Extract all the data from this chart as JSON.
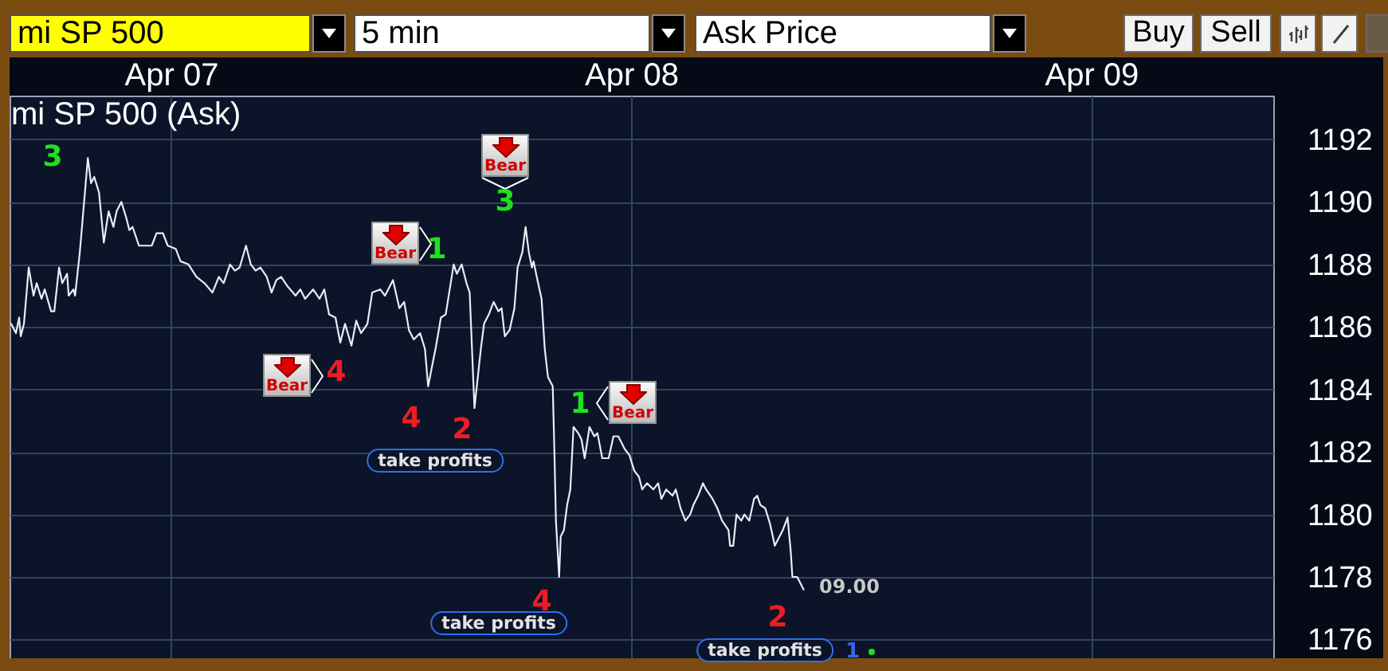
{
  "chart_data": {
    "type": "line",
    "title": "mi SP 500 (Ask)",
    "x": [
      "--04-06T15:40",
      "--04-06T15:55",
      "--04-06T16:05",
      "--04-06T16:10",
      "--04-06T16:20",
      "--04-06T16:35",
      "--04-06T16:50",
      "--04-06T17:00",
      "--04-06T17:15",
      "--04-06T17:25",
      "--04-06T17:45",
      "--04-06T17:55",
      "--04-06T18:10",
      "--04-06T18:20",
      "--04-06T18:35",
      "--04-06T18:40",
      "--04-06T18:55",
      "--04-06T19:00",
      "--04-06T19:15",
      "--04-06T19:30",
      "--04-06T19:40",
      "--04-06T19:50",
      "--04-06T20:00",
      "--04-06T20:15",
      "--04-06T20:30",
      "--04-06T20:45",
      "--04-06T21:00",
      "--04-06T21:10",
      "--04-06T21:25",
      "--04-06T21:40",
      "--04-06T21:50",
      "--04-06T22:00",
      "--04-06T22:20",
      "--04-06T23:00",
      "--04-06T23:15",
      "--04-06T23:35",
      "--04-06T23:50",
      "--04-07T00:15",
      "--04-07T00:30",
      "--04-07T00:55",
      "--04-07T01:20",
      "--04-07T01:45",
      "--04-07T02:10",
      "--04-07T02:30",
      "--04-07T02:45",
      "--04-07T03:05",
      "--04-07T03:20",
      "--04-07T03:35",
      "--04-07T03:55",
      "--04-07T04:10",
      "--04-07T04:25",
      "--04-07T04:40",
      "--04-07T05:00",
      "--04-07T05:15",
      "--04-07T05:30",
      "--04-07T05:45",
      "--04-07T06:05",
      "--04-07T06:30",
      "--04-07T06:45",
      "--04-07T07:00",
      "--04-07T07:25",
      "--04-07T07:45",
      "--04-07T08:00",
      "--04-07T08:15",
      "--04-07T08:35",
      "--04-07T08:50",
      "--04-07T09:05",
      "--04-07T09:25",
      "--04-07T09:40",
      "--04-07T09:55",
      "--04-07T10:15",
      "--04-07T10:30",
      "--04-07T10:55",
      "--04-07T11:10",
      "--04-07T11:35",
      "--04-07T11:55",
      "--04-07T12:10",
      "--04-07T12:25",
      "--04-07T12:40",
      "--04-07T13:00",
      "--04-07T13:15",
      "--04-07T13:25",
      "--04-07T13:50",
      "--04-07T14:05",
      "--04-07T14:20",
      "--04-07T14:45",
      "--04-07T14:55",
      "--04-07T15:10",
      "--04-07T15:25",
      "--04-07T15:35",
      "--04-07T15:50",
      "--04-07T16:10",
      "--04-07T16:20",
      "--04-07T16:35",
      "--04-07T16:50",
      "--04-07T17:05",
      "--04-07T17:15",
      "--04-07T17:25",
      "--04-07T17:40",
      "--04-07T17:55",
      "--04-07T18:05",
      "--04-07T18:20",
      "--04-07T18:30",
      "--04-07T18:40",
      "--04-07T18:50",
      "--04-07T18:55",
      "--04-07T19:05",
      "--04-07T19:20",
      "--04-07T19:30",
      "--04-07T19:40",
      "--04-07T19:55",
      "--04-07T20:00",
      "--04-07T20:05",
      "--04-07T20:15",
      "--04-07T20:20",
      "--04-07T20:30",
      "--04-07T20:40",
      "--04-07T20:50",
      "--04-07T20:55",
      "--04-07T21:00",
      "--04-07T21:15",
      "--04-07T21:25",
      "--04-07T21:35",
      "--04-07T21:50",
      "--04-07T22:05",
      "--04-07T22:15",
      "--04-07T22:30",
      "--04-07T22:50",
      "--04-07T23:05",
      "--04-07T23:20",
      "--04-07T23:40",
      "--04-07T23:55",
      "--04-08T00:10",
      "--04-08T00:25",
      "--04-08T00:35",
      "--04-08T00:50",
      "--04-08T01:10",
      "--04-08T01:25",
      "--04-08T01:35",
      "--04-08T01:50",
      "--04-08T02:10",
      "--04-08T02:20",
      "--04-08T02:35",
      "--04-08T02:50",
      "--04-08T03:05",
      "--04-08T03:15",
      "--04-08T03:30",
      "--04-08T03:45",
      "--04-08T03:55",
      "--04-08T04:15",
      "--04-08T04:30",
      "--04-08T04:45",
      "--04-08T05:05",
      "--04-08T05:10",
      "--04-08T05:20",
      "--04-08T05:30",
      "--04-08T05:45",
      "--04-08T05:55",
      "--04-08T06:10",
      "--04-08T06:25",
      "--04-08T06:35",
      "--04-08T06:45",
      "--04-08T07:00",
      "--04-08T07:15",
      "--04-08T07:30",
      "--04-08T07:45",
      "--04-08T07:55",
      "--04-08T08:10",
      "--04-08T08:20",
      "--04-08T08:25",
      "--04-08T08:40",
      "--04-08T08:50",
      "--04-08T09:00"
    ],
    "values": [
      1186.1,
      1185.8,
      1186.3,
      1185.7,
      1186.1,
      1187.9,
      1187.0,
      1187.4,
      1186.9,
      1187.2,
      1186.5,
      1186.5,
      1187.9,
      1187.4,
      1187.7,
      1187.0,
      1187.2,
      1187.0,
      1188.4,
      1190.2,
      1191.4,
      1190.6,
      1190.8,
      1190.3,
      1188.7,
      1189.7,
      1189.2,
      1189.7,
      1190.0,
      1189.5,
      1189.1,
      1189.2,
      1188.6,
      1188.6,
      1189.0,
      1189.0,
      1188.6,
      1188.5,
      1188.1,
      1188.0,
      1187.6,
      1187.4,
      1187.1,
      1187.6,
      1187.4,
      1188.0,
      1187.8,
      1187.9,
      1188.6,
      1188.0,
      1187.8,
      1187.9,
      1187.6,
      1187.1,
      1187.5,
      1187.6,
      1187.3,
      1187.0,
      1187.2,
      1186.9,
      1187.2,
      1186.9,
      1187.2,
      1186.4,
      1186.3,
      1185.5,
      1186.1,
      1185.4,
      1186.2,
      1185.8,
      1186.1,
      1187.1,
      1187.2,
      1187.0,
      1187.5,
      1186.6,
      1186.8,
      1185.9,
      1185.6,
      1185.8,
      1185.3,
      1184.1,
      1185.4,
      1186.3,
      1186.4,
      1188.0,
      1187.7,
      1188.0,
      1187.4,
      1187.1,
      1183.4,
      1185.3,
      1186.1,
      1186.4,
      1186.8,
      1186.5,
      1186.6,
      1185.7,
      1185.9,
      1186.6,
      1187.9,
      1188.4,
      1189.2,
      1188.4,
      1187.9,
      1188.1,
      1187.6,
      1186.9,
      1185.3,
      1184.4,
      1184.1,
      1182.1,
      1179.8,
      1178.0,
      1179.3,
      1179.5,
      1180.3,
      1180.8,
      1181.8,
      1182.8,
      1182.6,
      1182.4,
      1181.8,
      1182.8,
      1182.5,
      1182.6,
      1181.8,
      1181.8,
      1182.5,
      1182.5,
      1182.1,
      1181.9,
      1181.4,
      1181.2,
      1180.8,
      1181.0,
      1180.8,
      1181.0,
      1180.5,
      1180.8,
      1180.6,
      1180.8,
      1180.2,
      1179.8,
      1180.0,
      1180.3,
      1180.6,
      1181.0,
      1180.8,
      1180.5,
      1180.2,
      1179.8,
      1179.5,
      1179.0,
      1179.0,
      1180.0,
      1179.8,
      1180.0,
      1179.8,
      1180.5,
      1180.6,
      1180.3,
      1180.2,
      1179.7,
      1179.0,
      1179.3,
      1179.5,
      1179.9,
      1178.8,
      1178.0,
      1178.0,
      1177.8,
      1177.6
    ],
    "color": "#e8edf5",
    "xlim": [
      "--04-06T15:35",
      "--04-09T09:30"
    ],
    "xticks": [
      {
        "value": "--04-07",
        "label": "Apr 07"
      },
      {
        "value": "--04-08",
        "label": "Apr 08"
      },
      {
        "value": "--04-09",
        "label": "Apr 09"
      }
    ],
    "ylim": [
      1175.4,
      1193.4
    ],
    "yticks": [
      1176,
      1178,
      1180,
      1182,
      1184,
      1186,
      1188,
      1190,
      1192
    ],
    "grid": true,
    "annotations": [
      "mi SP 500",
      "5 min",
      "Ask Price",
      "Buy",
      "Sell",
      "3",
      "Bear",
      "4",
      "Bear",
      "1",
      "4",
      "2",
      "take profits",
      "Bear",
      "3",
      "1",
      "Bear",
      "4",
      "take profits",
      "09.00",
      "2",
      "take profits",
      "1"
    ]
  }
}
